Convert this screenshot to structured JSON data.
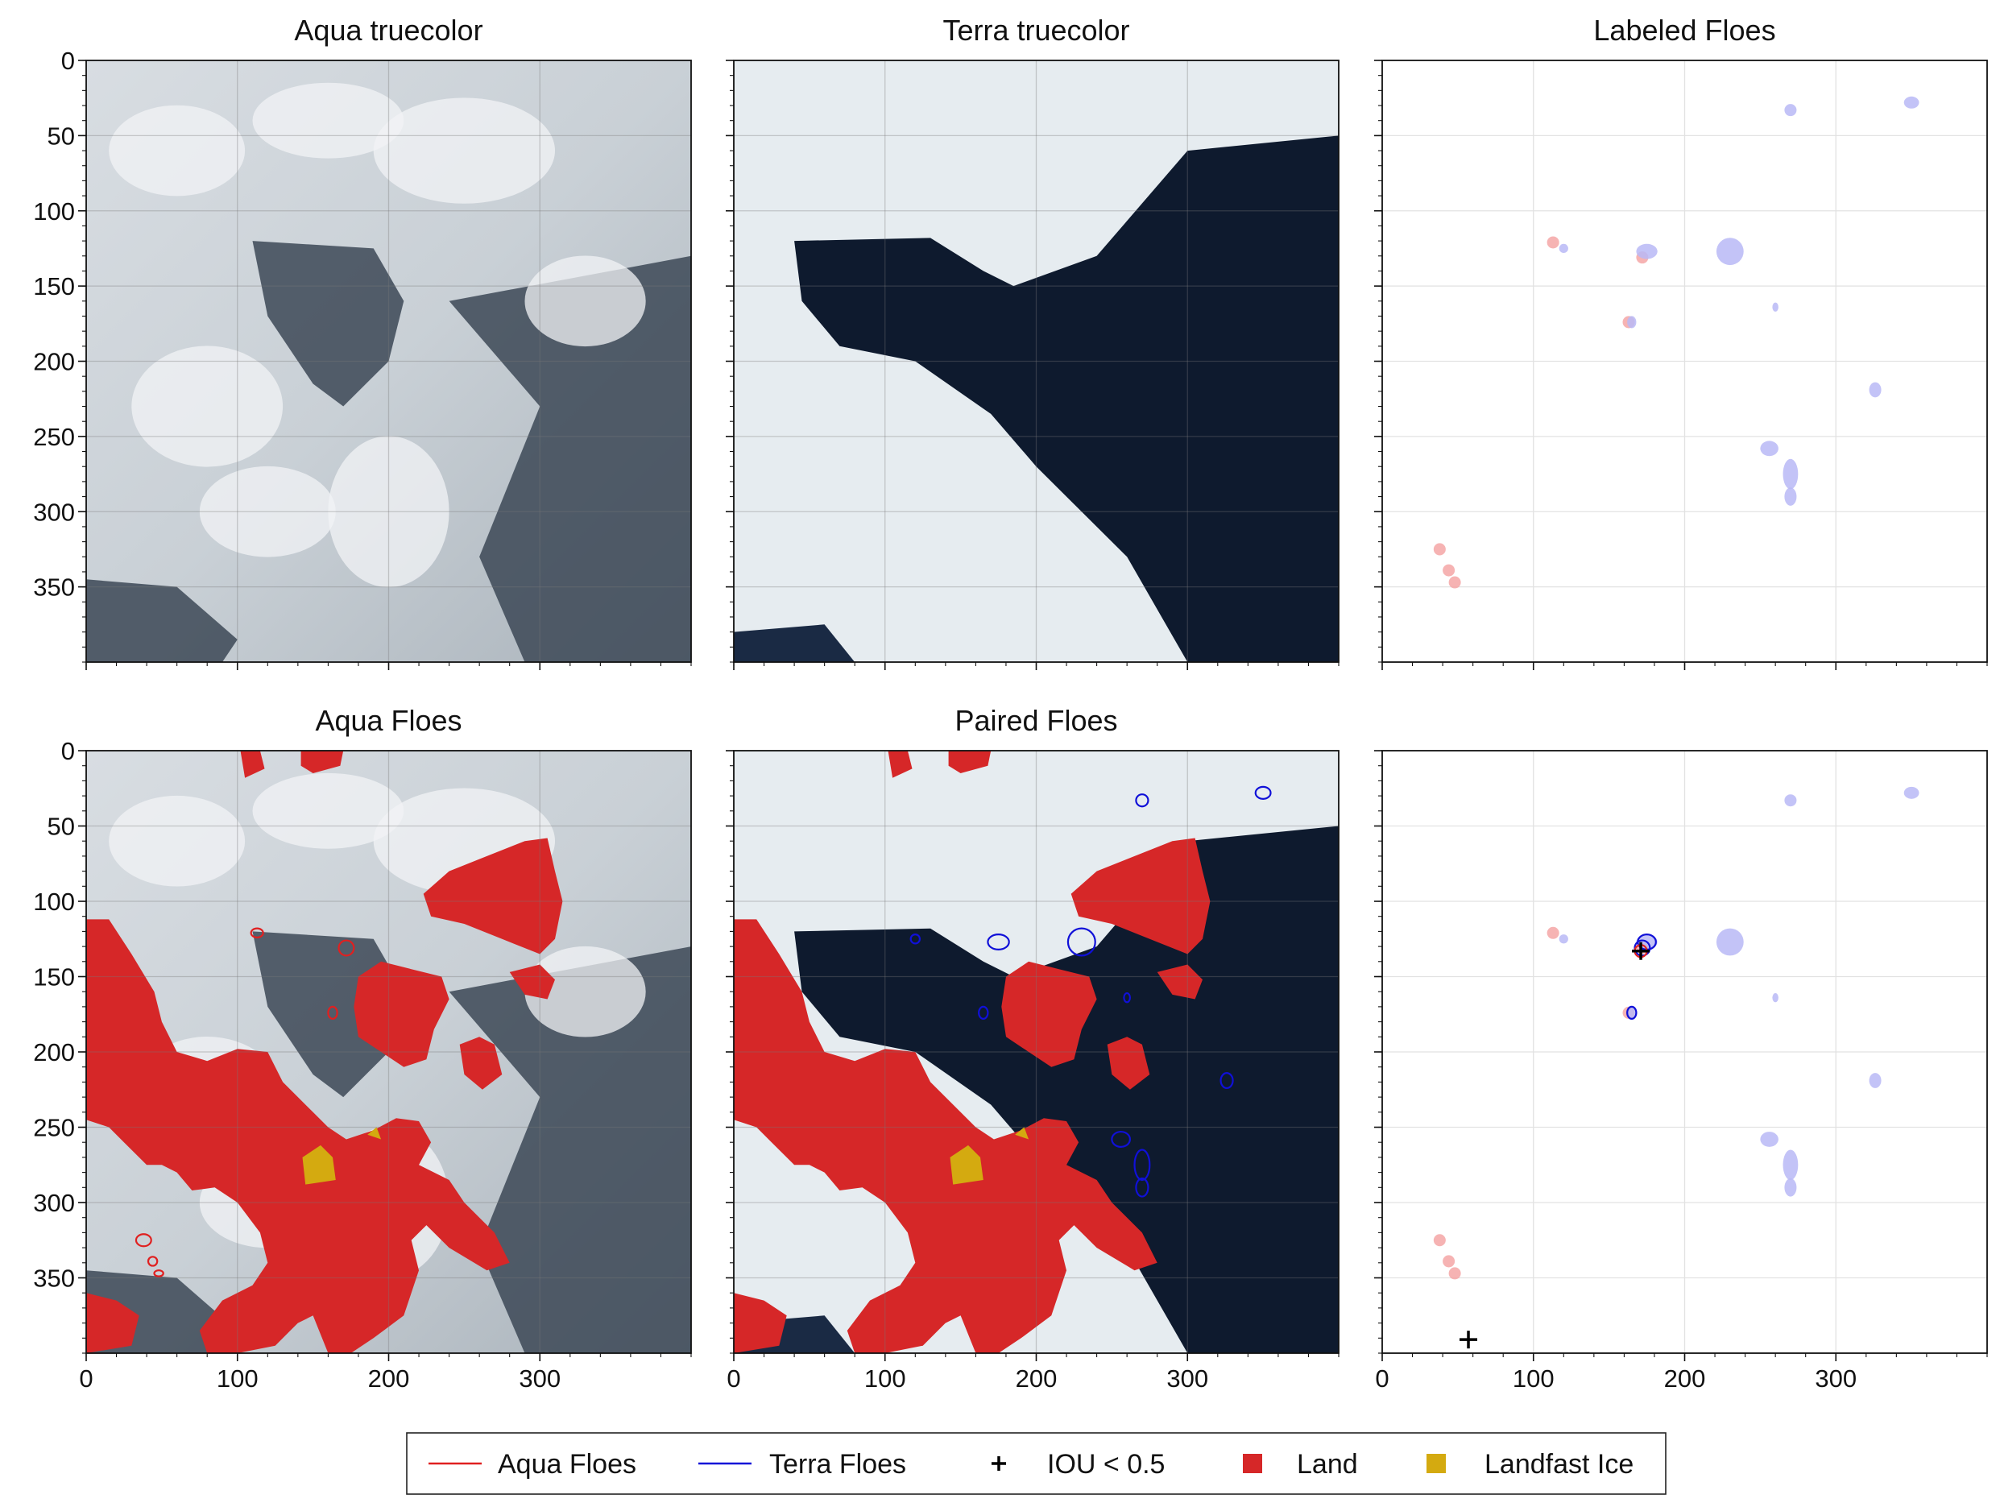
{
  "chart_data": [
    {
      "type": "image",
      "title": "Aqua truecolor",
      "xlim": [
        0,
        400
      ],
      "ylim": [
        400,
        0
      ],
      "xticks": [
        0,
        100,
        200,
        300
      ],
      "yticks": [
        0,
        50,
        100,
        150,
        200,
        250,
        300,
        350
      ],
      "show_x_tick_labels": false,
      "show_y_tick_labels": true,
      "background": "satellite truecolor image (clouds over sea ice)",
      "grid": true
    },
    {
      "type": "image",
      "title": "Terra truecolor",
      "xlim": [
        0,
        400
      ],
      "ylim": [
        400,
        0
      ],
      "xticks": [
        0,
        100,
        200,
        300
      ],
      "yticks": [
        0,
        50,
        100,
        150,
        200,
        250,
        300,
        350
      ],
      "show_x_tick_labels": false,
      "show_y_tick_labels": false,
      "background": "satellite truecolor image (sea ice, open water)",
      "grid": true
    },
    {
      "type": "scatter",
      "title": "Labeled Floes",
      "xlim": [
        0,
        400
      ],
      "ylim": [
        400,
        0
      ],
      "xticks": [
        0,
        100,
        200,
        300
      ],
      "yticks": [
        0,
        50,
        100,
        150,
        200,
        250,
        300,
        350
      ],
      "show_x_tick_labels": false,
      "show_y_tick_labels": false,
      "grid": true,
      "series": [
        {
          "name": "Aqua Floes",
          "color": "#f4a6a6",
          "points": [
            [
              113,
              121
            ],
            [
              172,
              131
            ],
            [
              163,
              174
            ],
            [
              38,
              325
            ],
            [
              44,
              339
            ],
            [
              48,
              347
            ]
          ]
        },
        {
          "name": "Terra Floes",
          "color": "#b9b9f6",
          "points": [
            [
              270,
              33
            ],
            [
              350,
              28
            ],
            [
              120,
              125
            ],
            [
              230,
              127
            ],
            [
              175,
              127
            ],
            [
              165,
              174
            ],
            [
              260,
              164
            ],
            [
              326,
              219
            ],
            [
              256,
              258
            ],
            [
              270,
              275
            ],
            [
              270,
              290
            ]
          ]
        }
      ]
    },
    {
      "type": "image",
      "title": "Aqua Floes",
      "xlim": [
        0,
        400
      ],
      "ylim": [
        400,
        0
      ],
      "xticks": [
        0,
        100,
        200,
        300
      ],
      "yticks": [
        0,
        50,
        100,
        150,
        200,
        250,
        300,
        350
      ],
      "show_x_tick_labels": true,
      "show_y_tick_labels": true,
      "background": "Aqua truecolor with land mask and floe outlines",
      "grid": true
    },
    {
      "type": "image",
      "title": "Paired Floes",
      "xlim": [
        0,
        400
      ],
      "ylim": [
        400,
        0
      ],
      "xticks": [
        0,
        100,
        200,
        300
      ],
      "yticks": [
        0,
        50,
        100,
        150,
        200,
        250,
        300,
        350
      ],
      "show_x_tick_labels": true,
      "show_y_tick_labels": false,
      "background": "Terra truecolor with land mask and floe outlines",
      "grid": true
    },
    {
      "type": "scatter",
      "title": "",
      "xlim": [
        0,
        400
      ],
      "ylim": [
        400,
        0
      ],
      "xticks": [
        0,
        100,
        200,
        300
      ],
      "yticks": [
        0,
        50,
        100,
        150,
        200,
        250,
        300,
        350
      ],
      "show_x_tick_labels": true,
      "show_y_tick_labels": false,
      "grid": true,
      "iou_markers": [
        [
          171,
          133
        ],
        [
          57,
          391
        ]
      ]
    }
  ],
  "legend": {
    "placement": "bottom-center",
    "entries": [
      {
        "label": "Aqua Floes",
        "marker": "line",
        "color": "#e02020"
      },
      {
        "label": "Terra Floes",
        "marker": "line",
        "color": "#1010d8"
      },
      {
        "label": "IOU < 0.5",
        "marker": "plus",
        "color": "#000000"
      },
      {
        "label": "Land",
        "marker": "square",
        "color": "#d62728"
      },
      {
        "label": "Landfast Ice",
        "marker": "square",
        "color": "#d4aa10"
      }
    ]
  },
  "colors": {
    "land": "#d62728",
    "landfast_ice": "#d4aa10",
    "aqua_floe": "#e02020",
    "terra_floe": "#1010d8",
    "water": "#0e1a2e",
    "ice": "#e6ecf0"
  }
}
